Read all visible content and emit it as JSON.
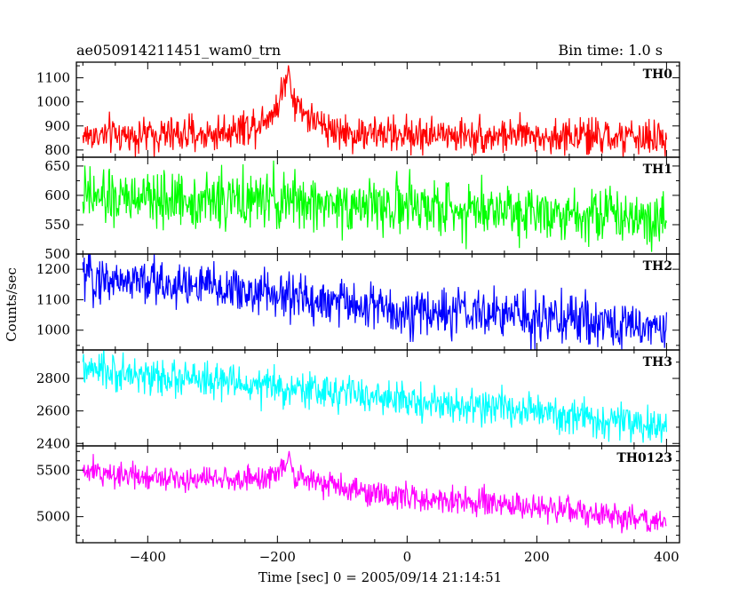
{
  "header": {
    "title": "ae050914211451_wam0_trn",
    "bin_time": "Bin time: 1.0 s"
  },
  "chart_data": {
    "type": "line",
    "xlabel": "Time [sec] 0 = 2005/09/14 21:14:51",
    "ylabel": "Counts/sec",
    "xlim": [
      -510,
      420
    ],
    "xticks": [
      -400,
      -200,
      0,
      200,
      400
    ],
    "xtick_labels": [
      "−400",
      "−200",
      "0",
      "200",
      "400"
    ],
    "x_minor_step": 50,
    "bin_seconds": 1.0,
    "grid": false,
    "series": [
      {
        "name": "TH0",
        "color": "#ff0000",
        "ylim": [
          770,
          1165
        ],
        "yticks": [
          800,
          900,
          1000,
          1100
        ],
        "y_minor_step": 50,
        "baseline": [
          [
            -500,
            860
          ],
          [
            -300,
            865
          ],
          [
            -230,
            910
          ],
          [
            -200,
            980
          ],
          [
            -185,
            1110
          ],
          [
            -170,
            990
          ],
          [
            -140,
            910
          ],
          [
            -100,
            870
          ],
          [
            0,
            865
          ],
          [
            200,
            860
          ],
          [
            400,
            845
          ]
        ],
        "noise": 38,
        "peak": [
          -183,
          1150
        ]
      },
      {
        "name": "TH1",
        "color": "#00ff00",
        "ylim": [
          500,
          665
        ],
        "yticks": [
          500,
          550,
          600,
          650
        ],
        "y_minor_step": 25,
        "baseline": [
          [
            -500,
            595
          ],
          [
            -200,
            590
          ],
          [
            0,
            580
          ],
          [
            200,
            575
          ],
          [
            400,
            562
          ]
        ],
        "noise": 24
      },
      {
        "name": "TH2",
        "color": "#0000ff",
        "ylim": [
          935,
          1250
        ],
        "yticks": [
          1000,
          1100,
          1200
        ],
        "y_minor_step": 50,
        "baseline": [
          [
            -500,
            1175
          ],
          [
            -300,
            1140
          ],
          [
            -100,
            1090
          ],
          [
            0,
            1060
          ],
          [
            200,
            1045
          ],
          [
            400,
            1005
          ]
        ],
        "noise": 40
      },
      {
        "name": "TH3",
        "color": "#00ffff",
        "ylim": [
          2385,
          2975
        ],
        "yticks": [
          2400,
          2600,
          2800
        ],
        "y_minor_step": 100,
        "baseline": [
          [
            -500,
            2850
          ],
          [
            -300,
            2780
          ],
          [
            -100,
            2710
          ],
          [
            0,
            2660
          ],
          [
            200,
            2595
          ],
          [
            400,
            2490
          ]
        ],
        "noise": 55
      },
      {
        "name": "TH0123",
        "color": "#ff00ff",
        "ylim": [
          4720,
          5760
        ],
        "yticks": [
          5000,
          5500
        ],
        "y_minor_step": 100,
        "baseline": [
          [
            -500,
            5480
          ],
          [
            -300,
            5400
          ],
          [
            -220,
            5400
          ],
          [
            -190,
            5540
          ],
          [
            -170,
            5420
          ],
          [
            -100,
            5300
          ],
          [
            0,
            5200
          ],
          [
            200,
            5100
          ],
          [
            400,
            4940
          ]
        ],
        "noise": 70,
        "peak": [
          -182,
          5700
        ]
      }
    ]
  }
}
